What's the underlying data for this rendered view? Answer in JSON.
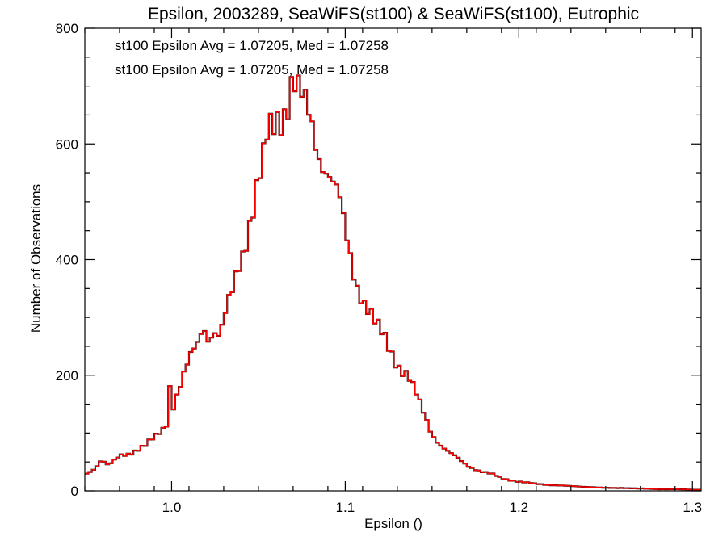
{
  "chart_data": {
    "type": "histogram",
    "title": "Epsilon, 2003289, SeaWiFS(st100) & SeaWiFS(st100), Eutrophic",
    "xlabel": "Epsilon ()",
    "ylabel": "Number of Observations",
    "xlim": [
      0.95,
      1.305
    ],
    "ylim": [
      0,
      800
    ],
    "xticks": [
      1.0,
      1.1,
      1.2,
      1.3
    ],
    "xtick_labels": [
      "1.0",
      "1.1",
      "1.2",
      "1.3"
    ],
    "yticks": [
      0,
      200,
      400,
      600,
      800
    ],
    "ytick_labels": [
      "0",
      "200",
      "400",
      "600",
      "800"
    ],
    "bin_width": 0.002,
    "grid": false,
    "annotations": [
      {
        "text": "st100 Epsilon Avg = 1.07205, Med = 1.07258",
        "color": "#000000"
      },
      {
        "text": "st100 Epsilon Avg = 1.07205, Med = 1.07258",
        "color": "#ff0000"
      }
    ],
    "series": [
      {
        "color": "#ff0000",
        "overlay_color": "#000000",
        "points": [
          [
            0.95,
            28
          ],
          [
            0.955,
            38
          ],
          [
            0.96,
            55
          ],
          [
            0.963,
            44
          ],
          [
            0.966,
            48
          ],
          [
            0.97,
            60
          ],
          [
            0.975,
            65
          ],
          [
            0.98,
            72
          ],
          [
            0.985,
            78
          ],
          [
            0.99,
            90
          ],
          [
            0.993,
            100
          ],
          [
            0.996,
            112
          ],
          [
            0.998,
            125
          ],
          [
            0.9995,
            215
          ],
          [
            1.001,
            150
          ],
          [
            1.004,
            175
          ],
          [
            1.008,
            205
          ],
          [
            1.012,
            235
          ],
          [
            1.016,
            260
          ],
          [
            1.018,
            295
          ],
          [
            1.021,
            270
          ],
          [
            1.024,
            280
          ],
          [
            1.028,
            265
          ],
          [
            1.032,
            310
          ],
          [
            1.035,
            340
          ],
          [
            1.038,
            385
          ],
          [
            1.041,
            420
          ],
          [
            1.044,
            460
          ],
          [
            1.047,
            495
          ],
          [
            1.05,
            530
          ],
          [
            1.053,
            560
          ],
          [
            1.055,
            600
          ],
          [
            1.058,
            625
          ],
          [
            1.061,
            650
          ],
          [
            1.064,
            665
          ],
          [
            1.067,
            685
          ],
          [
            1.0695,
            715
          ],
          [
            1.072,
            690
          ],
          [
            1.075,
            665
          ],
          [
            1.078,
            650
          ],
          [
            1.081,
            630
          ],
          [
            1.084,
            600
          ],
          [
            1.087,
            580
          ],
          [
            1.09,
            560
          ],
          [
            1.093,
            530
          ],
          [
            1.097,
            490
          ],
          [
            1.1,
            440
          ],
          [
            1.103,
            405
          ],
          [
            1.106,
            370
          ],
          [
            1.11,
            340
          ],
          [
            1.114,
            310
          ],
          [
            1.118,
            280
          ],
          [
            1.123,
            260
          ],
          [
            1.128,
            235
          ],
          [
            1.132,
            215
          ],
          [
            1.136,
            200
          ],
          [
            1.14,
            170
          ],
          [
            1.145,
            135
          ],
          [
            1.15,
            100
          ],
          [
            1.155,
            80
          ],
          [
            1.16,
            65
          ],
          [
            1.165,
            55
          ],
          [
            1.17,
            45
          ],
          [
            1.175,
            38
          ],
          [
            1.18,
            32
          ],
          [
            1.185,
            28
          ],
          [
            1.19,
            22
          ],
          [
            1.2,
            16
          ],
          [
            1.21,
            12
          ],
          [
            1.22,
            10
          ],
          [
            1.23,
            8
          ],
          [
            1.24,
            7
          ],
          [
            1.25,
            5
          ],
          [
            1.26,
            5
          ],
          [
            1.27,
            4
          ],
          [
            1.28,
            3
          ],
          [
            1.29,
            3
          ],
          [
            1.3,
            2
          ],
          [
            1.305,
            2
          ]
        ]
      }
    ]
  }
}
